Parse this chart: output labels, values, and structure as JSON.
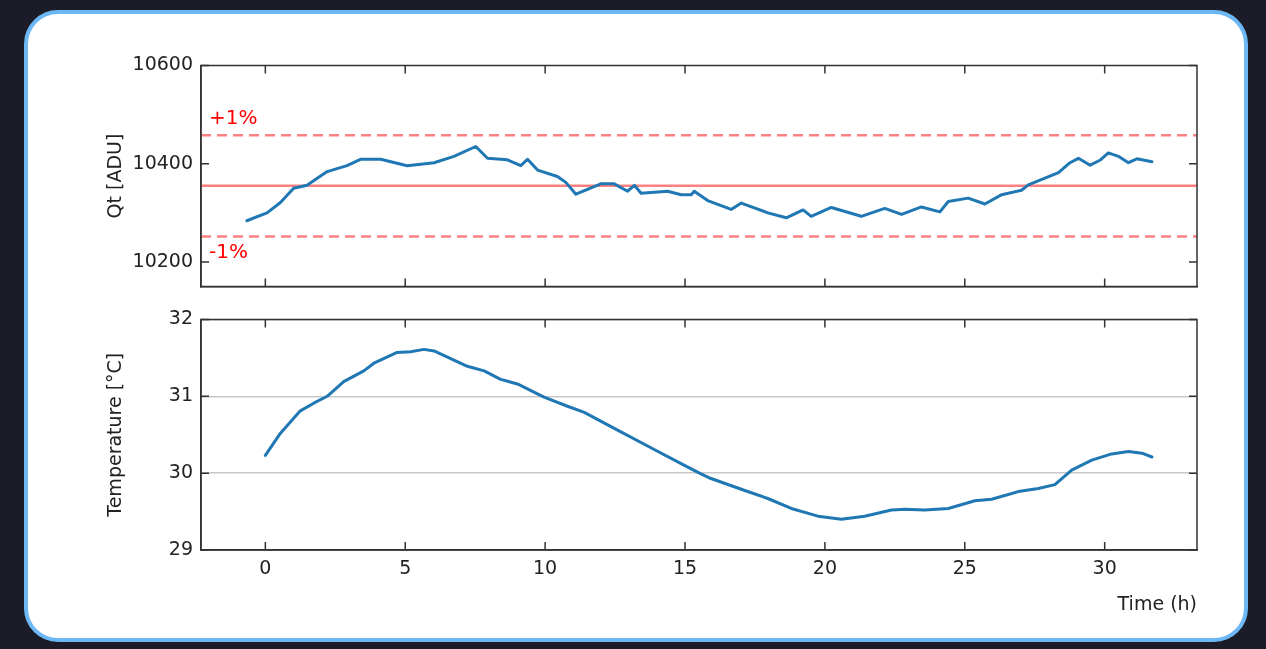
{
  "chart_data": [
    {
      "type": "line",
      "ylabel": "Qt [ADU]",
      "xlim": [
        -2.3,
        33.3
      ],
      "xticks": [
        0,
        5,
        10,
        15,
        20,
        25,
        30
      ],
      "ylim": [
        10150,
        10600
      ],
      "yticks": [
        10200,
        10400,
        10600
      ],
      "grid": false,
      "legend": false,
      "tick_labels": "y",
      "series": [
        {
          "color": "#1f77b4",
          "x": [
            -0.66,
            0.06,
            0.54,
            1.01,
            1.49,
            2.21,
            2.92,
            3.4,
            4.12,
            5.07,
            6.03,
            6.74,
            7.52,
            7.94,
            8.65,
            9.13,
            9.37,
            9.73,
            10.44,
            10.74,
            11.1,
            11.99,
            12.47,
            12.95,
            13.19,
            13.43,
            14.38,
            14.86,
            15.22,
            15.33,
            15.81,
            16.65,
            17.01,
            17.96,
            18.62,
            19.22,
            19.51,
            20.23,
            21.3,
            22.14,
            22.74,
            23.45,
            24.11,
            24.41,
            25.12,
            25.72,
            26.32,
            27.03,
            27.27,
            28.35,
            28.76,
            29.06,
            29.48,
            29.83,
            30.13,
            30.49,
            30.85,
            31.15,
            31.69
          ],
          "values": [
            10284,
            10300,
            10321,
            10350,
            10356,
            10384,
            10396,
            10409,
            10409,
            10396,
            10402,
            10415,
            10435,
            10411,
            10408,
            10396,
            10409,
            10387,
            10374,
            10362,
            10338,
            10359,
            10359,
            10344,
            10356,
            10340,
            10344,
            10337,
            10337,
            10344,
            10325,
            10307,
            10320,
            10300,
            10290,
            10306,
            10293,
            10311,
            10293,
            10309,
            10297,
            10312,
            10302,
            10323,
            10330,
            10318,
            10337,
            10346,
            10357,
            10382,
            10402,
            10411,
            10397,
            10407,
            10422,
            10415,
            10402,
            10410,
            10404
          ]
        }
      ],
      "ref_lines": [
        {
          "axis": "y",
          "value": 10355,
          "color": "#ff8080",
          "line_style": "solid"
        },
        {
          "axis": "y",
          "value": 10458,
          "color": "#ff8080",
          "line_style": "dashed"
        },
        {
          "axis": "y",
          "value": 10252,
          "color": "#ff8080",
          "line_style": "dashed"
        }
      ],
      "annotations": [
        {
          "text": "+1%",
          "y": 10458
        },
        {
          "text": "-1%",
          "y": 10252
        }
      ]
    },
    {
      "type": "line",
      "xlabel": "Time (h)",
      "ylabel": "Temperature [°C]",
      "xlim": [
        -2.3,
        33.3
      ],
      "xticks": [
        0,
        5,
        10,
        15,
        20,
        25,
        30
      ],
      "ylim": [
        29,
        32
      ],
      "yticks": [
        29,
        30,
        31,
        32
      ],
      "grid": "y",
      "legend": false,
      "series": [
        {
          "color": "#1f77b4",
          "x": [
            0,
            0.54,
            1.25,
            1.73,
            2.21,
            2.8,
            3.52,
            3.88,
            4.71,
            5.19,
            5.67,
            6.03,
            6.74,
            7.22,
            7.82,
            8.41,
            9.01,
            9.96,
            10.8,
            11.4,
            12.59,
            13.78,
            14.98,
            15.57,
            15.93,
            17.01,
            17.96,
            18.8,
            19.75,
            20.59,
            21.42,
            22.38,
            22.86,
            23.57,
            24.41,
            25.36,
            25.96,
            26.91,
            27.63,
            28.22,
            28.82,
            29.54,
            30.25,
            30.85,
            31.33,
            31.69
          ],
          "values": [
            30.23,
            30.52,
            30.81,
            30.91,
            31.0,
            31.19,
            31.33,
            31.43,
            31.57,
            31.58,
            31.61,
            31.59,
            31.47,
            31.39,
            31.33,
            31.22,
            31.16,
            30.99,
            30.87,
            30.79,
            30.56,
            30.33,
            30.1,
            29.99,
            29.93,
            29.79,
            29.67,
            29.54,
            29.44,
            29.4,
            29.44,
            29.52,
            29.53,
            29.52,
            29.54,
            29.64,
            29.66,
            29.76,
            29.8,
            29.85,
            30.04,
            30.17,
            30.25,
            30.28,
            30.26,
            30.21
          ]
        }
      ]
    }
  ]
}
